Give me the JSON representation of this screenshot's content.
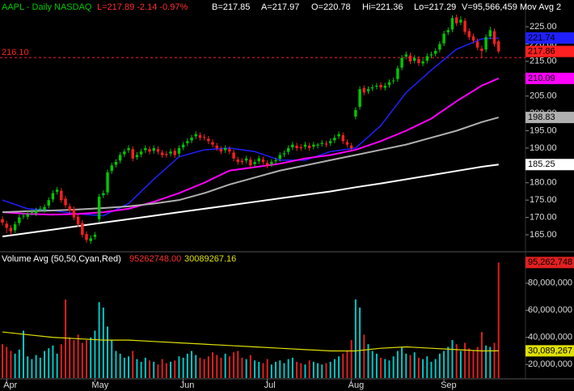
{
  "chart_data": {
    "type": "candlestick",
    "title": "AAPL - Daily  NASDAQ",
    "quote": [
      "L=217.89 -2.14 -0.97%",
      "B=217.85",
      "A=217.97",
      "O=220.78",
      "Hi=221.36",
      "Lo=217.29",
      "V=95,566,459",
      "Mov Avg 2"
    ],
    "up_color": "#00c800",
    "down_color": "#ff2020",
    "xlim": [
      -0.58,
      124.4
    ],
    "xticks": [
      {
        "value": 1,
        "label": "Apr"
      },
      {
        "value": 22,
        "label": "May"
      },
      {
        "value": 43,
        "label": "Jun"
      },
      {
        "value": 63,
        "label": "Jul"
      },
      {
        "value": 83,
        "label": "Aug"
      },
      {
        "value": 105,
        "label": "Sep"
      }
    ],
    "ylim": [
      160.8,
      232.7
    ],
    "yticks": [
      {
        "value": 225,
        "label": "225.00"
      },
      {
        "value": 220,
        "label": "220.00"
      },
      {
        "value": 215,
        "label": "215.00"
      },
      {
        "value": 210,
        "label": "210.00"
      },
      {
        "value": 205,
        "label": "205.00"
      },
      {
        "value": 200,
        "label": "200.00"
      },
      {
        "value": 195,
        "label": "195.00"
      },
      {
        "value": 190,
        "label": "190.00"
      },
      {
        "value": 185,
        "label": "185.00"
      },
      {
        "value": 180,
        "label": "180.00"
      },
      {
        "value": 175,
        "label": "175.00"
      },
      {
        "value": 170,
        "label": "170.00"
      },
      {
        "value": 165,
        "label": "165.00"
      }
    ],
    "ohlc": [
      [
        169.5,
        170.3,
        167.7,
        168.5
      ],
      [
        168.2,
        169,
        165.5,
        167
      ],
      [
        167,
        167.8,
        165,
        166
      ],
      [
        166.3,
        168.8,
        165.5,
        168
      ],
      [
        168.4,
        170.8,
        167.6,
        170
      ],
      [
        170.3,
        171.3,
        169.5,
        170.5
      ],
      [
        170.2,
        171.8,
        169.4,
        171
      ],
      [
        171.4,
        172.3,
        170.6,
        171.5
      ],
      [
        171.2,
        172.8,
        170.4,
        172
      ],
      [
        172.4,
        173.3,
        171.6,
        172.5
      ],
      [
        172.2,
        173.8,
        171.4,
        173
      ],
      [
        173.4,
        175.8,
        172.6,
        175
      ],
      [
        175.2,
        177.8,
        174.4,
        177
      ],
      [
        177.4,
        178.8,
        176.6,
        178
      ],
      [
        177.7,
        178.5,
        174.2,
        175
      ],
      [
        175.4,
        176.2,
        172.7,
        173.5
      ],
      [
        173.2,
        174,
        171.2,
        172
      ],
      [
        172.4,
        173.2,
        169.2,
        170
      ],
      [
        170.2,
        171,
        167.2,
        168
      ],
      [
        168.4,
        169.2,
        164.2,
        165
      ],
      [
        165.2,
        166,
        162.7,
        163.5
      ],
      [
        163.2,
        164.8,
        162.4,
        164
      ],
      [
        164.4,
        165.8,
        163.6,
        165
      ],
      [
        169.5,
        176.8,
        168.7,
        176
      ],
      [
        176.4,
        177.8,
        175.6,
        177
      ],
      [
        177.2,
        183.8,
        176.4,
        183
      ],
      [
        183.4,
        185.8,
        182.6,
        185
      ],
      [
        185.2,
        186.8,
        184.4,
        186
      ],
      [
        186.4,
        188.8,
        185.6,
        188
      ],
      [
        188.2,
        189.8,
        187.4,
        189
      ],
      [
        189.4,
        190.8,
        188.6,
        190
      ],
      [
        189.7,
        190.5,
        186.2,
        187
      ],
      [
        187.4,
        188.8,
        186.6,
        188
      ],
      [
        188.2,
        189.8,
        187.4,
        189
      ],
      [
        189.4,
        190.8,
        188.6,
        190
      ],
      [
        189.7,
        190.5,
        188.2,
        189
      ],
      [
        189.2,
        190.8,
        188.4,
        190
      ],
      [
        189.7,
        190.5,
        188.2,
        189
      ],
      [
        188.7,
        189.5,
        187.2,
        188
      ],
      [
        188.3,
        189.1,
        187.2,
        188
      ],
      [
        188.4,
        189.8,
        187.6,
        189
      ],
      [
        189.2,
        190,
        187.2,
        188
      ],
      [
        188.4,
        190.8,
        187.6,
        190
      ],
      [
        190.2,
        191.8,
        189.4,
        191
      ],
      [
        191.4,
        192.8,
        190.6,
        192
      ],
      [
        192.2,
        193.8,
        191.4,
        193
      ],
      [
        193.4,
        194.8,
        192.6,
        194
      ],
      [
        193.7,
        194.5,
        192.2,
        193
      ],
      [
        193.2,
        194,
        192.2,
        193
      ],
      [
        192.7,
        193.5,
        191.2,
        192
      ],
      [
        191.7,
        192.5,
        190.2,
        191
      ],
      [
        190.7,
        191.5,
        189.2,
        190
      ],
      [
        189.7,
        190.5,
        188.2,
        189
      ],
      [
        189.4,
        190.8,
        188.6,
        190
      ],
      [
        189.7,
        190.5,
        188.2,
        189
      ],
      [
        188.7,
        189.5,
        186.2,
        187
      ],
      [
        186.7,
        187.5,
        185.2,
        186
      ],
      [
        186.3,
        187.1,
        185.2,
        186
      ],
      [
        186.4,
        187.8,
        185.6,
        187
      ],
      [
        186.7,
        187.5,
        184.2,
        185
      ],
      [
        185.4,
        186.8,
        184.6,
        186
      ],
      [
        186.2,
        187.8,
        185.4,
        187
      ],
      [
        186.7,
        187.5,
        185.2,
        186
      ],
      [
        185.7,
        186.5,
        184.2,
        185
      ],
      [
        185.4,
        186.8,
        184.6,
        186
      ],
      [
        186.2,
        187.3,
        185.4,
        186.5
      ],
      [
        186.9,
        188.8,
        186.1,
        188
      ],
      [
        188.2,
        189.3,
        187.4,
        188.5
      ],
      [
        188.9,
        190.8,
        188.1,
        190
      ],
      [
        190.2,
        191.8,
        189.4,
        191
      ],
      [
        190.7,
        191.5,
        189.2,
        190
      ],
      [
        190.3,
        191.1,
        189.2,
        190
      ],
      [
        190.4,
        191.8,
        189.6,
        191
      ],
      [
        190.7,
        191.5,
        189.2,
        190
      ],
      [
        190.4,
        191.8,
        189.6,
        191
      ],
      [
        190.7,
        191.5,
        189.9,
        191
      ],
      [
        191.2,
        192.3,
        190.4,
        191.5
      ],
      [
        191.3,
        192.1,
        190.2,
        191
      ],
      [
        191.4,
        192.8,
        190.6,
        192
      ],
      [
        192.2,
        193.8,
        191.4,
        193
      ],
      [
        193.4,
        194.8,
        192.6,
        194
      ],
      [
        193.7,
        194.5,
        191.2,
        192
      ],
      [
        191.7,
        192.5,
        190.2,
        191
      ],
      [
        190.7,
        191.5,
        189.2,
        190
      ],
      [
        199.1,
        201.8,
        198.3,
        201
      ],
      [
        201.9,
        207.8,
        201.1,
        207
      ],
      [
        207.3,
        208.1,
        205.2,
        206
      ],
      [
        206.4,
        207.8,
        205.6,
        207
      ],
      [
        207.2,
        208.3,
        206.4,
        207.5
      ],
      [
        207.7,
        208.8,
        206.9,
        208
      ],
      [
        208.2,
        209,
        206.7,
        207.5
      ],
      [
        207.4,
        208.8,
        206.6,
        208
      ],
      [
        208.2,
        209.8,
        207.4,
        209
      ],
      [
        209.3,
        210.3,
        208.5,
        209.5
      ],
      [
        209.9,
        213.8,
        209.1,
        213
      ],
      [
        213.2,
        216.8,
        212.4,
        216
      ],
      [
        216.4,
        217.8,
        215.6,
        217
      ],
      [
        216.7,
        217.5,
        214.2,
        215
      ],
      [
        215.2,
        216.8,
        214.4,
        216
      ],
      [
        215.7,
        216.5,
        213.7,
        214.5
      ],
      [
        214.4,
        215.8,
        213.6,
        215
      ],
      [
        215.2,
        217.3,
        214.4,
        216.5
      ],
      [
        216.7,
        217.8,
        215.9,
        217
      ],
      [
        217.2,
        218.8,
        216.4,
        218
      ],
      [
        218.4,
        220.8,
        217.6,
        220
      ],
      [
        220.2,
        223.8,
        219.4,
        223
      ],
      [
        223.4,
        224.8,
        222.6,
        224
      ],
      [
        224.2,
        228.3,
        223.4,
        227.5
      ],
      [
        227.7,
        228.5,
        225.2,
        226
      ],
      [
        226.2,
        228,
        225.4,
        227
      ],
      [
        226.7,
        227.5,
        222.7,
        223.5
      ],
      [
        223.7,
        224.5,
        221.2,
        222
      ],
      [
        222.2,
        223,
        220.2,
        221
      ],
      [
        220.7,
        221.5,
        218.2,
        219
      ],
      [
        218.7,
        219.5,
        216,
        218
      ],
      [
        218.4,
        222.8,
        217.6,
        222
      ],
      [
        222.2,
        225,
        221.4,
        224
      ],
      [
        223.7,
        224.5,
        219.2,
        220
      ],
      [
        220.78,
        221.36,
        217.29,
        217.89
      ]
    ],
    "moving_averages": {
      "x": [
        0,
        6,
        12,
        18,
        24,
        30,
        36,
        42,
        48,
        54,
        60,
        66,
        72,
        78,
        84,
        90,
        96,
        102,
        108,
        114,
        118
      ],
      "series": [
        {
          "color": "#2020ff",
          "tag_text_color": "#000000",
          "values": [
            175,
            172.5,
            172,
            171,
            170.5,
            174,
            181,
            187.5,
            189.5,
            190,
            189,
            186.5,
            186.5,
            189,
            190,
            196.5,
            206,
            212.5,
            218.5,
            221.5,
            221.74
          ]
        },
        {
          "color": "#ff00ff",
          "tag_text_color": "#000000",
          "values": [
            171.5,
            171,
            170.8,
            171,
            171.5,
            172.5,
            174.5,
            177,
            180,
            183.5,
            184.5,
            185.5,
            187,
            188,
            189.5,
            192,
            195,
            198.5,
            203.5,
            208,
            210.09
          ]
        },
        {
          "color": "#b0b0b0",
          "tag_text_color": "#000000",
          "values": [
            171.5,
            171.8,
            172,
            172.3,
            172.7,
            173.2,
            174,
            175,
            177,
            179.5,
            181.5,
            183.5,
            185,
            186.5,
            188,
            189.5,
            191,
            193,
            195,
            197.5,
            198.83
          ]
        },
        {
          "color": "#ffffff",
          "tag_text_color": "#000000",
          "values": [
            164.5,
            165.5,
            166.5,
            167.5,
            168.5,
            169.5,
            170.5,
            171.5,
            172.5,
            173.5,
            174.5,
            175.5,
            176.5,
            177.5,
            178.7,
            179.8,
            181,
            182.2,
            183.4,
            184.6,
            185.25
          ]
        }
      ]
    },
    "price_tag": {
      "value": 217.86,
      "color": "#ff2020"
    },
    "reference_line": {
      "value": 216.1,
      "label": "216.10",
      "color": "#ff2020"
    },
    "volume": {
      "title": "Volume Avg (50,50,Cyan,Red)",
      "last_text": "95262748.00",
      "avg_text": "30089267.16",
      "up_color": "#00c8c8",
      "down_color": "#e02020",
      "avg_color": "#e0e000",
      "ylim": [
        10000000,
        100800000
      ],
      "yticks": [
        {
          "value": 80000000,
          "label": "80,000,000"
        },
        {
          "value": 60000000,
          "label": "60,000,000"
        },
        {
          "value": 40000000,
          "label": "40,000,000"
        },
        {
          "value": 20000000,
          "label": "20,000,000"
        }
      ],
      "values": [
        35000000.0,
        33000000.0,
        30000000.0,
        28000000.0,
        31000000.0,
        45000000.0,
        26000000.0,
        24000000.0,
        27000000.0,
        25000000.0,
        30000000.0,
        32000000.0,
        34000000.0,
        28000000.0,
        35000000.0,
        68000000.0,
        40000000.0,
        38000000.0,
        42000000.0,
        36000000.0,
        38000000.0,
        40000000.0,
        45000000.0,
        66000000.0,
        62000000.0,
        48000000.0,
        38000000.0,
        30000000.0,
        28000000.0,
        25000000.0,
        26000000.0,
        30000000.0,
        24000000.0,
        22000000.0,
        25000000.0,
        23000000.0,
        22000000.0,
        20000000.0,
        24000000.0,
        21000000.0,
        22000000.0,
        23000000.0,
        26000000.0,
        25000000.0,
        28000000.0,
        30000000.0,
        27000000.0,
        25000000.0,
        24000000.0,
        26000000.0,
        29000000.0,
        27000000.0,
        25000000.0,
        28000000.0,
        26000000.0,
        29000000.0,
        30000000.0,
        25000000.0,
        24000000.0,
        27000000.0,
        23000000.0,
        22000000.0,
        21000000.0,
        24000000.0,
        20000000.0,
        22000000.0,
        23000000.0,
        21000000.0,
        24000000.0,
        25000000.0,
        22000000.0,
        21000000.0,
        20000000.0,
        23000000.0,
        22000000.0,
        21000000.0,
        20000000.0,
        21000000.0,
        22000000.0,
        24000000.0,
        26000000.0,
        28000000.0,
        30000000.0,
        38000000.0,
        68000000.0,
        62000000.0,
        42000000.0,
        35000000.0,
        30000000.0,
        28000000.0,
        25000000.0,
        24000000.0,
        23000000.0,
        26000000.0,
        30000000.0,
        33000000.0,
        28000000.0,
        27000000.0,
        29000000.0,
        25000000.0,
        24000000.0,
        26000000.0,
        22000000.0,
        24000000.0,
        28000000.0,
        30000000.0,
        33000000.0,
        38000000.0,
        35000000.0,
        30000000.0,
        36000000.0,
        32000000.0,
        30000000.0,
        33000000.0,
        44000000.0,
        34000000.0,
        33000000.0,
        36000000.0,
        95262748
      ],
      "last_value_label": "95,262,748",
      "avg_x": [
        0,
        6,
        12,
        18,
        24,
        30,
        36,
        42,
        48,
        54,
        60,
        66,
        72,
        78,
        84,
        90,
        96,
        102,
        108,
        114,
        118
      ],
      "avg_values": [
        44000000.0,
        42000000.0,
        40000000.0,
        39000000.0,
        38000000.0,
        38000000.0,
        37000000.0,
        36000000.0,
        35000000.0,
        34000000.0,
        33000000.0,
        32000000.0,
        31000000.0,
        30000000.0,
        30000000.0,
        32000000.0,
        33000000.0,
        32000000.0,
        31000000.0,
        30000000.0,
        30089267.16
      ],
      "avg_value_label": "30,089,267"
    }
  }
}
